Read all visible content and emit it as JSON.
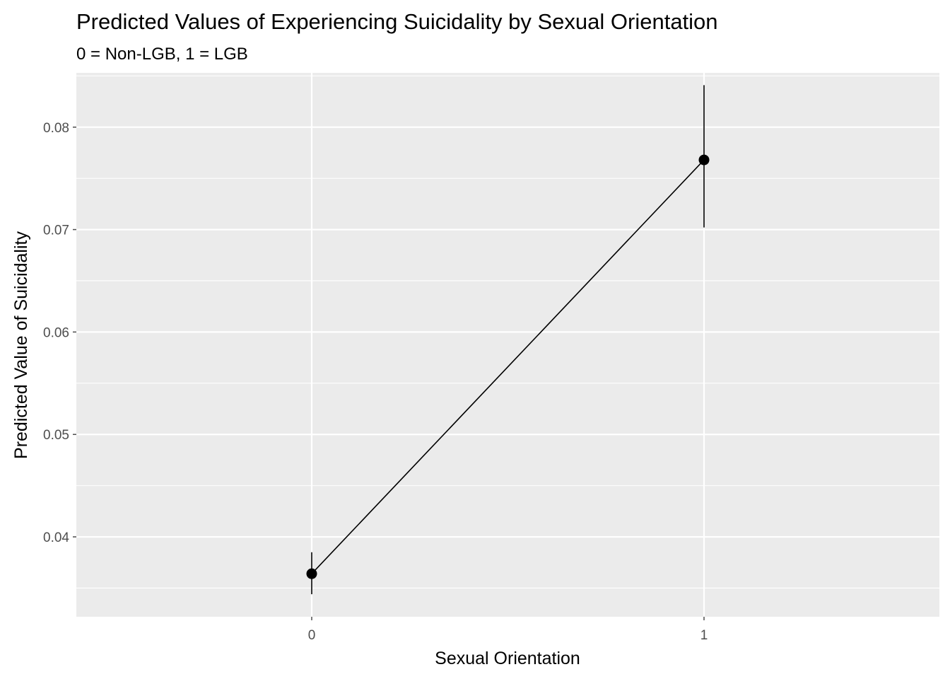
{
  "chart_data": {
    "type": "line",
    "title": "Predicted Values of Experiencing Suicidality by Sexual Orientation",
    "subtitle": "0 = Non-LGB, 1 = LGB",
    "xlabel": "Sexual Orientation",
    "ylabel": "Predicted Value of Suicidality",
    "x_ticks": [
      "0",
      "1"
    ],
    "y_ticks": [
      "0.04",
      "0.05",
      "0.06",
      "0.07",
      "0.08"
    ],
    "xlim": [
      -0.6,
      1.6
    ],
    "ylim": [
      0.0322,
      0.0853
    ],
    "grid": true,
    "points": [
      {
        "x": 0,
        "y": 0.0364,
        "lower": 0.0344,
        "upper": 0.0385
      },
      {
        "x": 1,
        "y": 0.0768,
        "lower": 0.0702,
        "upper": 0.0841
      }
    ],
    "colors": {
      "panel_background": "#ebebeb",
      "grid": "#ffffff",
      "mark": "#000000",
      "tick_text": "#4d4d4d"
    }
  }
}
